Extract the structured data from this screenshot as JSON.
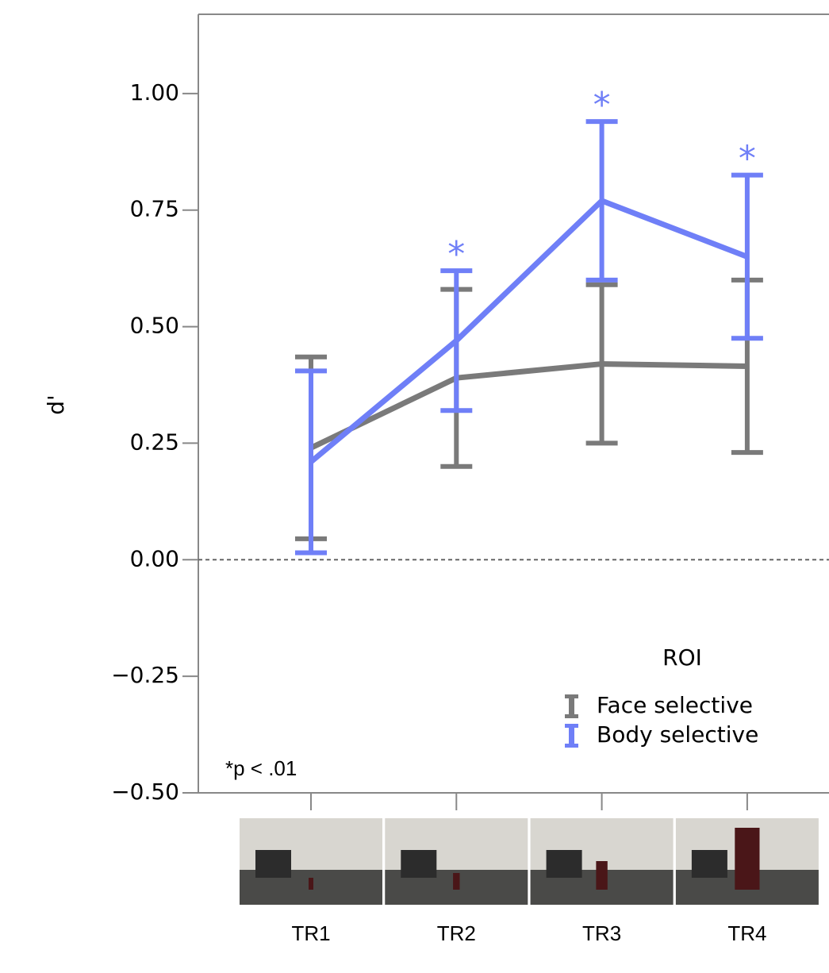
{
  "chart_data": {
    "type": "line",
    "y_label": "d'",
    "categories": [
      "TR1",
      "TR2",
      "TR3",
      "TR4"
    ],
    "series": [
      {
        "name": "Face selective",
        "color": "#7a7a7a",
        "values": [
          0.24,
          0.39,
          0.42,
          0.415
        ],
        "errors": [
          0.195,
          0.19,
          0.17,
          0.185
        ]
      },
      {
        "name": "Body selective",
        "color": "#6f7ff7",
        "values": [
          0.21,
          0.47,
          0.77,
          0.65
        ],
        "errors": [
          0.195,
          0.15,
          0.17,
          0.175
        ],
        "markers": [
          null,
          "*",
          "*",
          "*"
        ]
      }
    ],
    "legend_title": "ROI",
    "legend_position": "lower right",
    "note": "*p < .01",
    "reference_line": 0,
    "ylim": [
      -0.5,
      1.17
    ],
    "yticks": [
      {
        "value": -0.5,
        "label": "−0.50"
      },
      {
        "value": -0.25,
        "label": "−0.25"
      },
      {
        "value": 0,
        "label": "0.00"
      },
      {
        "value": 0.25,
        "label": "0.25"
      },
      {
        "value": 0.5,
        "label": "0.50"
      },
      {
        "value": 0.75,
        "label": "0.75"
      },
      {
        "value": 1,
        "label": "1.00"
      }
    ]
  }
}
